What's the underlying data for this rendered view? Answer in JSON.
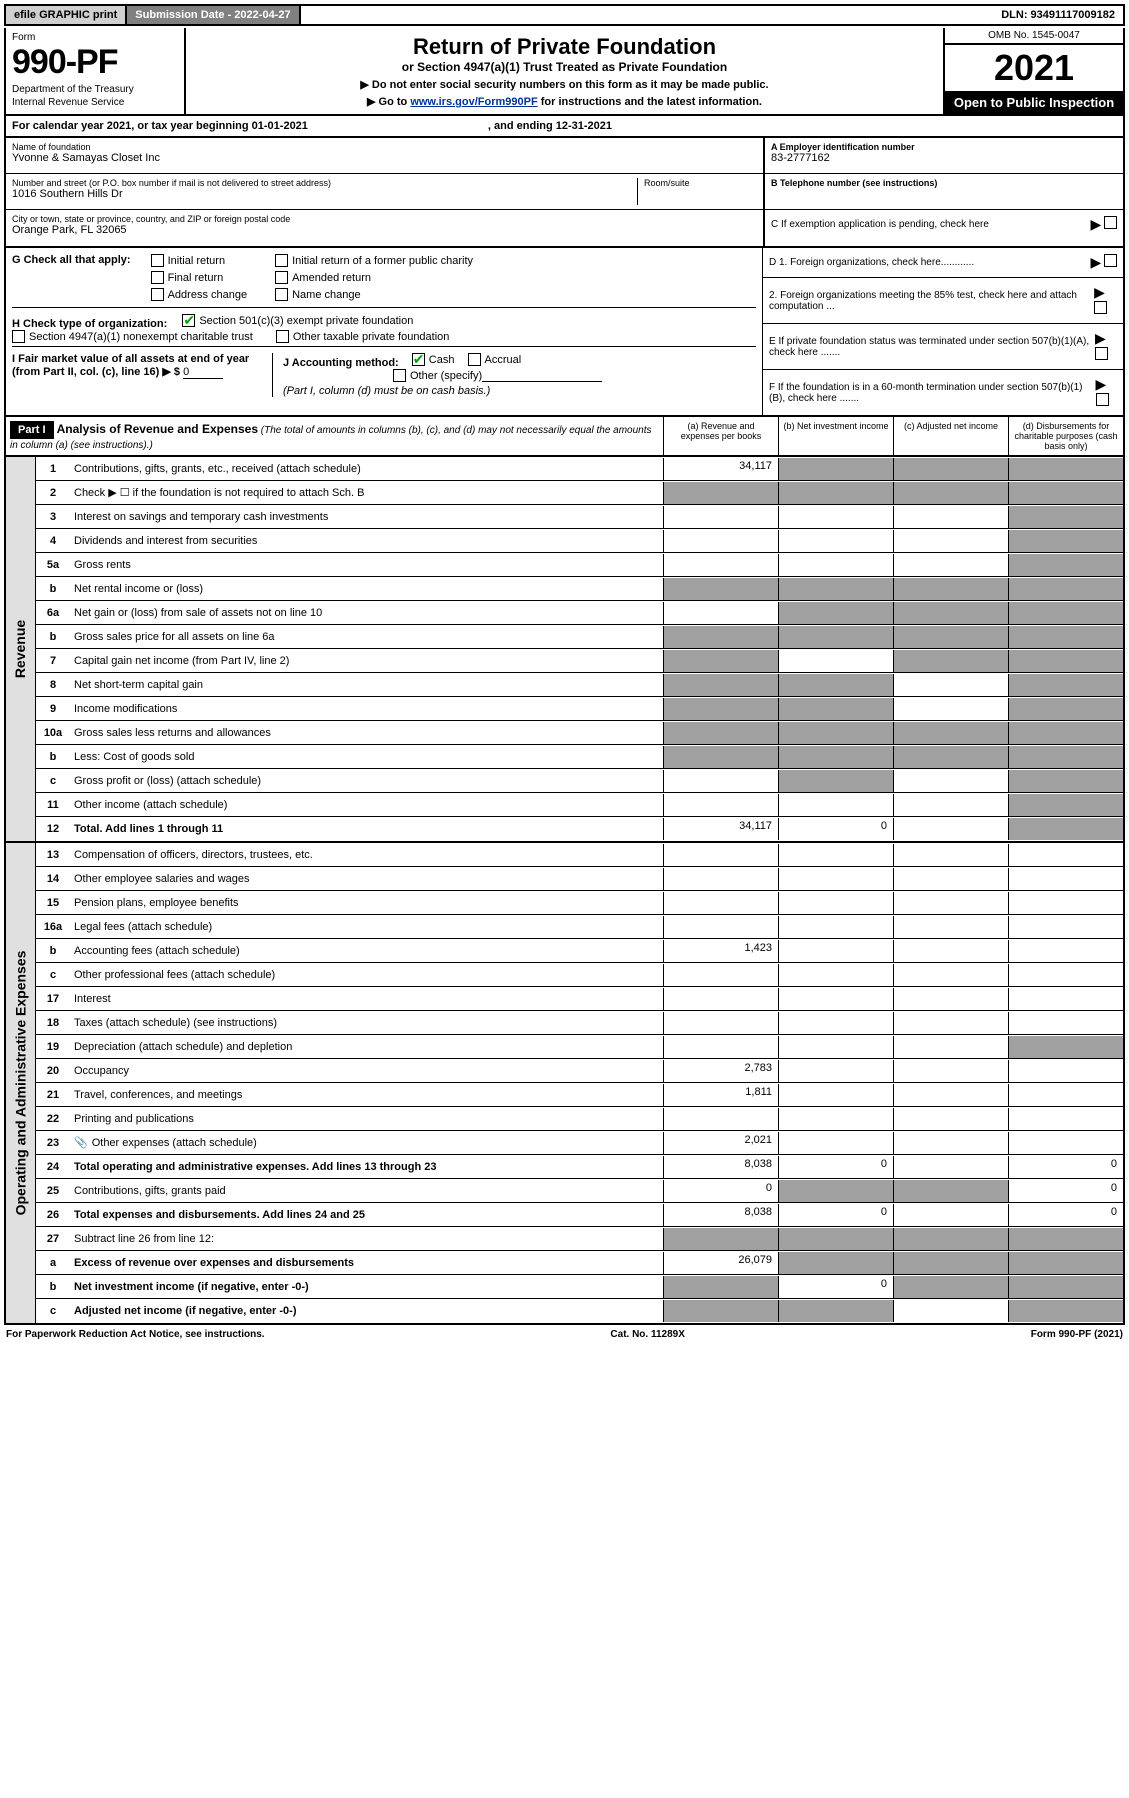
{
  "topbar": {
    "efile": "efile GRAPHIC print",
    "submission_label": "Submission Date - 2022-04-27",
    "dln": "DLN: 93491117009182"
  },
  "header": {
    "form_label": "Form",
    "form_number": "990-PF",
    "dept1": "Department of the Treasury",
    "dept2": "Internal Revenue Service",
    "title": "Return of Private Foundation",
    "subtitle": "or Section 4947(a)(1) Trust Treated as Private Foundation",
    "instr1": "▶ Do not enter social security numbers on this form as it may be made public.",
    "instr2_pre": "▶ Go to ",
    "instr2_link": "www.irs.gov/Form990PF",
    "instr2_post": " for instructions and the latest information.",
    "omb": "OMB No. 1545-0047",
    "year": "2021",
    "inspection": "Open to Public Inspection"
  },
  "calendar": {
    "line": "For calendar year 2021, or tax year beginning 01-01-2021",
    "ending": ", and ending 12-31-2021"
  },
  "entity": {
    "name_label": "Name of foundation",
    "name": "Yvonne & Samayas Closet Inc",
    "street_label": "Number and street (or P.O. box number if mail is not delivered to street address)",
    "street": "1016 Southern Hills Dr",
    "room_label": "Room/suite",
    "city_label": "City or town, state or province, country, and ZIP or foreign postal code",
    "city": "Orange Park, FL  32065",
    "ein_label": "A Employer identification number",
    "ein": "83-2777162",
    "phone_label": "B Telephone number (see instructions)",
    "exempt_label": "C If exemption application is pending, check here"
  },
  "checks": {
    "g_label": "G Check all that apply:",
    "g1": "Initial return",
    "g2": "Initial return of a former public charity",
    "g3": "Final return",
    "g4": "Amended return",
    "g5": "Address change",
    "g6": "Name change",
    "h_label": "H Check type of organization:",
    "h1": "Section 501(c)(3) exempt private foundation",
    "h2": "Section 4947(a)(1) nonexempt charitable trust",
    "h3": "Other taxable private foundation",
    "i_label": "I Fair market value of all assets at end of year (from Part II, col. (c), line 16) ▶ $",
    "i_value": "0",
    "j_label": "J Accounting method:",
    "j1": "Cash",
    "j2": "Accrual",
    "j3": "Other (specify)",
    "j_note": "(Part I, column (d) must be on cash basis.)",
    "d1": "D 1. Foreign organizations, check here............",
    "d2": "2. Foreign organizations meeting the 85% test, check here and attach computation ...",
    "e": "E  If private foundation status was terminated under section 507(b)(1)(A), check here .......",
    "f": "F  If the foundation is in a 60-month termination under section 507(b)(1)(B), check here .......",
    "arrow": "▶"
  },
  "part1": {
    "label": "Part I",
    "title": "Analysis of Revenue and Expenses",
    "desc": " (The total of amounts in columns (b), (c), and (d) may not necessarily equal the amounts in column (a) (see instructions).)",
    "col_a": "(a) Revenue and expenses per books",
    "col_b": "(b) Net investment income",
    "col_c": "(c) Adjusted net income",
    "col_d": "(d) Disbursements for charitable purposes (cash basis only)"
  },
  "sections": {
    "revenue": "Revenue",
    "expenses": "Operating and Administrative Expenses"
  },
  "rows": [
    {
      "n": "1",
      "d": "Contributions, gifts, grants, etc., received (attach schedule)",
      "a": "34,117",
      "b": "_s",
      "c": "_s",
      "dd": "_s"
    },
    {
      "n": "2",
      "d": "Check ▶ ☐ if the foundation is not required to attach Sch. B",
      "a": "_s",
      "b": "_s",
      "c": "_s",
      "dd": "_s"
    },
    {
      "n": "3",
      "d": "Interest on savings and temporary cash investments",
      "a": "",
      "b": "",
      "c": "",
      "dd": "_s"
    },
    {
      "n": "4",
      "d": "Dividends and interest from securities",
      "a": "",
      "b": "",
      "c": "",
      "dd": "_s"
    },
    {
      "n": "5a",
      "d": "Gross rents",
      "a": "",
      "b": "",
      "c": "",
      "dd": "_s"
    },
    {
      "n": "b",
      "d": "Net rental income or (loss)",
      "a": "_s",
      "b": "_s",
      "c": "_s",
      "dd": "_s"
    },
    {
      "n": "6a",
      "d": "Net gain or (loss) from sale of assets not on line 10",
      "a": "",
      "b": "_s",
      "c": "_s",
      "dd": "_s"
    },
    {
      "n": "b",
      "d": "Gross sales price for all assets on line 6a",
      "a": "_s",
      "b": "_s",
      "c": "_s",
      "dd": "_s"
    },
    {
      "n": "7",
      "d": "Capital gain net income (from Part IV, line 2)",
      "a": "_s",
      "b": "",
      "c": "_s",
      "dd": "_s"
    },
    {
      "n": "8",
      "d": "Net short-term capital gain",
      "a": "_s",
      "b": "_s",
      "c": "",
      "dd": "_s"
    },
    {
      "n": "9",
      "d": "Income modifications",
      "a": "_s",
      "b": "_s",
      "c": "",
      "dd": "_s"
    },
    {
      "n": "10a",
      "d": "Gross sales less returns and allowances",
      "a": "_s",
      "b": "_s",
      "c": "_s",
      "dd": "_s"
    },
    {
      "n": "b",
      "d": "Less: Cost of goods sold",
      "a": "_s",
      "b": "_s",
      "c": "_s",
      "dd": "_s"
    },
    {
      "n": "c",
      "d": "Gross profit or (loss) (attach schedule)",
      "a": "",
      "b": "_s",
      "c": "",
      "dd": "_s"
    },
    {
      "n": "11",
      "d": "Other income (attach schedule)",
      "a": "",
      "b": "",
      "c": "",
      "dd": "_s"
    },
    {
      "n": "12",
      "d": "Total. Add lines 1 through 11",
      "a": "34,117",
      "b": "0",
      "c": "",
      "dd": "_s",
      "bold": true
    }
  ],
  "erows": [
    {
      "n": "13",
      "d": "Compensation of officers, directors, trustees, etc.",
      "a": "",
      "b": "",
      "c": "",
      "dd": ""
    },
    {
      "n": "14",
      "d": "Other employee salaries and wages",
      "a": "",
      "b": "",
      "c": "",
      "dd": ""
    },
    {
      "n": "15",
      "d": "Pension plans, employee benefits",
      "a": "",
      "b": "",
      "c": "",
      "dd": ""
    },
    {
      "n": "16a",
      "d": "Legal fees (attach schedule)",
      "a": "",
      "b": "",
      "c": "",
      "dd": ""
    },
    {
      "n": "b",
      "d": "Accounting fees (attach schedule)",
      "a": "1,423",
      "b": "",
      "c": "",
      "dd": ""
    },
    {
      "n": "c",
      "d": "Other professional fees (attach schedule)",
      "a": "",
      "b": "",
      "c": "",
      "dd": ""
    },
    {
      "n": "17",
      "d": "Interest",
      "a": "",
      "b": "",
      "c": "",
      "dd": ""
    },
    {
      "n": "18",
      "d": "Taxes (attach schedule) (see instructions)",
      "a": "",
      "b": "",
      "c": "",
      "dd": ""
    },
    {
      "n": "19",
      "d": "Depreciation (attach schedule) and depletion",
      "a": "",
      "b": "",
      "c": "",
      "dd": "_s"
    },
    {
      "n": "20",
      "d": "Occupancy",
      "a": "2,783",
      "b": "",
      "c": "",
      "dd": ""
    },
    {
      "n": "21",
      "d": "Travel, conferences, and meetings",
      "a": "1,811",
      "b": "",
      "c": "",
      "dd": ""
    },
    {
      "n": "22",
      "d": "Printing and publications",
      "a": "",
      "b": "",
      "c": "",
      "dd": ""
    },
    {
      "n": "23",
      "d": "Other expenses (attach schedule)",
      "a": "2,021",
      "b": "",
      "c": "",
      "dd": "",
      "icon": true
    },
    {
      "n": "24",
      "d": "Total operating and administrative expenses. Add lines 13 through 23",
      "a": "8,038",
      "b": "0",
      "c": "",
      "dd": "0",
      "bold": true
    },
    {
      "n": "25",
      "d": "Contributions, gifts, grants paid",
      "a": "0",
      "b": "_s",
      "c": "_s",
      "dd": "0"
    },
    {
      "n": "26",
      "d": "Total expenses and disbursements. Add lines 24 and 25",
      "a": "8,038",
      "b": "0",
      "c": "",
      "dd": "0",
      "bold": true
    },
    {
      "n": "27",
      "d": "Subtract line 26 from line 12:",
      "a": "_s",
      "b": "_s",
      "c": "_s",
      "dd": "_s"
    },
    {
      "n": "a",
      "d": "Excess of revenue over expenses and disbursements",
      "a": "26,079",
      "b": "_s",
      "c": "_s",
      "dd": "_s",
      "bold": true
    },
    {
      "n": "b",
      "d": "Net investment income (if negative, enter -0-)",
      "a": "_s",
      "b": "0",
      "c": "_s",
      "dd": "_s",
      "bold": true
    },
    {
      "n": "c",
      "d": "Adjusted net income (if negative, enter -0-)",
      "a": "_s",
      "b": "_s",
      "c": "",
      "dd": "_s",
      "bold": true
    }
  ],
  "footer": {
    "left": "For Paperwork Reduction Act Notice, see instructions.",
    "mid": "Cat. No. 11289X",
    "right": "Form 990-PF (2021)"
  },
  "colors": {
    "shaded": "#a0a0a0",
    "section_bg": "#e0e0e0",
    "link": "#003399",
    "check_green": "#00a000"
  }
}
